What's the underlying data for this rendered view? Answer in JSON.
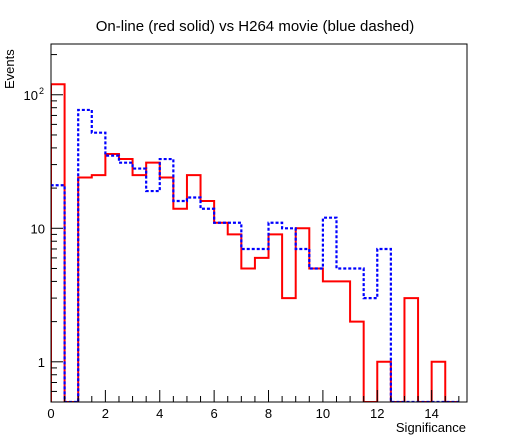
{
  "chart_data": {
    "type": "histogram",
    "title": "On-line (red solid) vs H264 movie (blue dashed)",
    "xlabel": "Significance",
    "ylabel": "Events",
    "xlim": [
      0,
      15.3
    ],
    "ylim": [
      0.5,
      240
    ],
    "yscale": "log",
    "grid": false,
    "bin_width": 0.5,
    "x_ticks": [
      {
        "value": 0,
        "label": "0"
      },
      {
        "value": 2,
        "label": "2"
      },
      {
        "value": 4,
        "label": "4"
      },
      {
        "value": 6,
        "label": "6"
      },
      {
        "value": 8,
        "label": "8"
      },
      {
        "value": 10,
        "label": "10"
      },
      {
        "value": 12,
        "label": "12"
      },
      {
        "value": 14,
        "label": "14"
      }
    ],
    "y_ticks": [
      {
        "value": 1,
        "label": "1"
      },
      {
        "value": 10,
        "label": "10"
      },
      {
        "value": 100,
        "label": "10",
        "exp": "2"
      }
    ],
    "series": [
      {
        "name": "On-line",
        "color": "#ff0000",
        "style": "solid",
        "bin_edges": [
          0,
          0.5,
          1,
          1.5,
          2,
          2.5,
          3,
          3.5,
          4,
          4.5,
          5,
          5.5,
          6,
          6.5,
          7,
          7.5,
          8,
          8.5,
          9,
          9.5,
          10,
          10.5,
          11,
          11.5,
          12,
          12.5,
          13,
          13.5,
          14,
          14.5,
          15
        ],
        "values": [
          120,
          0,
          24,
          25,
          36,
          33,
          25,
          31,
          24,
          14,
          25,
          16,
          11,
          9,
          5,
          6,
          9,
          3,
          10,
          5,
          4,
          4,
          2,
          0,
          1,
          0,
          3,
          0,
          1,
          0
        ]
      },
      {
        "name": "H264 movie",
        "color": "#0000ff",
        "style": "dashed",
        "bin_edges": [
          -0.5,
          0,
          0.5,
          1,
          1.5,
          2,
          2.5,
          3,
          3.5,
          4,
          4.5,
          5,
          5.5,
          6,
          6.5,
          7,
          7.5,
          8,
          8.5,
          9,
          9.5,
          10,
          10.5,
          11,
          11.5,
          12,
          12.5,
          13,
          13.5,
          14,
          14.5,
          15
        ],
        "values": [
          21,
          21,
          0,
          77,
          52,
          35,
          31,
          28,
          19,
          33,
          16,
          17,
          14,
          11,
          11,
          7,
          7,
          11,
          10,
          7,
          5,
          12,
          5,
          5,
          3,
          7,
          0,
          0,
          0,
          0,
          0
        ]
      }
    ]
  }
}
